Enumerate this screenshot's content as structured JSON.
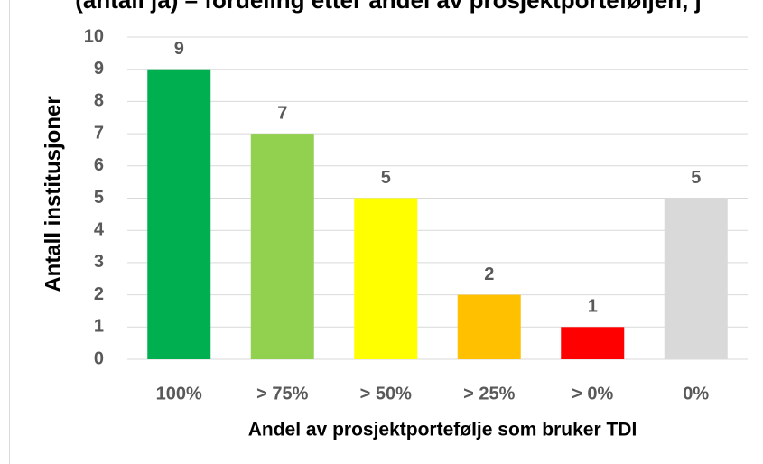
{
  "chart_data": {
    "type": "bar",
    "title": "(antall ja) – fordeling etter andel av prosjektporteføljen, j",
    "categories": [
      "100%",
      "> 75%",
      "> 50%",
      "> 25%",
      "> 0%",
      "0%"
    ],
    "values": [
      9,
      7,
      5,
      2,
      1,
      5
    ],
    "colors": [
      "#00b050",
      "#92d050",
      "#ffff00",
      "#ffc000",
      "#ff0000",
      "#d9d9d9"
    ],
    "xlabel": "Andel av prosjektportefølje som bruker TDI",
    "ylabel": "Antall institusjoner",
    "ylim": [
      0,
      10
    ],
    "yticks": [
      0,
      1,
      2,
      3,
      4,
      5,
      6,
      7,
      8,
      9,
      10
    ],
    "grid": true
  }
}
